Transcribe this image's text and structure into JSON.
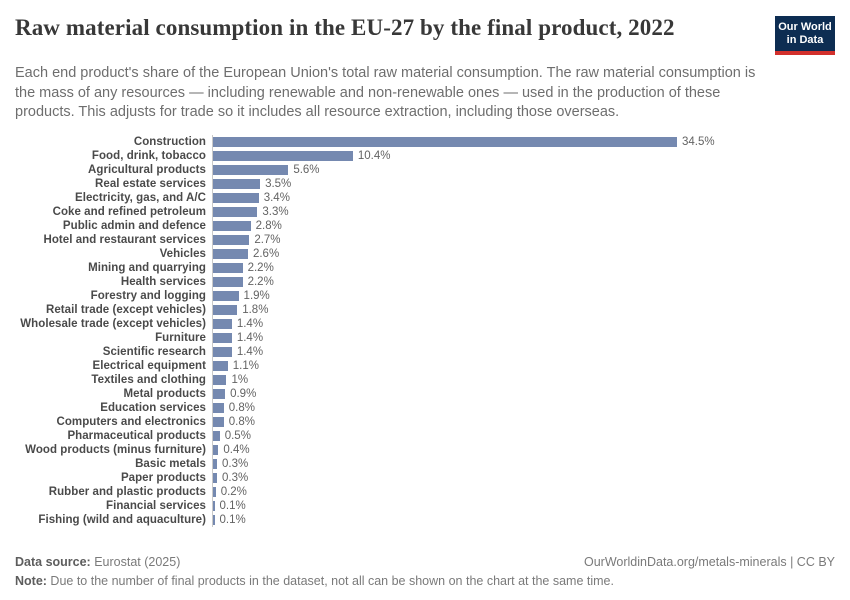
{
  "header": {
    "title": "Raw material consumption in the EU-27 by the final product, 2022",
    "subtitle": "Each end product's share of the European Union's total raw material consumption. The raw material consumption is the mass of any resources — including renewable and non-renewable ones — used in the production of these products. This adjusts for trade so it includes all resource extraction, including those overseas."
  },
  "logo": {
    "line1": "Our World",
    "line2": "in Data",
    "bg_color": "#0d2d52",
    "stripe_color": "#d2302c"
  },
  "chart_data": {
    "type": "bar",
    "orientation": "horizontal",
    "title": "Raw material consumption in the EU-27 by the final product, 2022",
    "unit": "%",
    "xlim": [
      0,
      34.5
    ],
    "grid": false,
    "bar_color": "#7589b0",
    "categories": [
      "Construction",
      "Food, drink, tobacco",
      "Agricultural products",
      "Real estate services",
      "Electricity, gas, and A/C",
      "Coke and refined petroleum",
      "Public admin and defence",
      "Hotel and restaurant services",
      "Vehicles",
      "Mining and quarrying",
      "Health services",
      "Forestry and logging",
      "Retail trade (except vehicles)",
      "Wholesale trade (except vehicles)",
      "Furniture",
      "Scientific research",
      "Electrical equipment",
      "Textiles and clothing",
      "Metal products",
      "Education services",
      "Computers and electronics",
      "Pharmaceutical products",
      "Wood products (minus furniture)",
      "Basic metals",
      "Paper products",
      "Rubber and plastic products",
      "Financial services",
      "Fishing (wild and aquaculture)"
    ],
    "values": [
      34.5,
      10.4,
      5.6,
      3.5,
      3.4,
      3.3,
      2.8,
      2.7,
      2.6,
      2.2,
      2.2,
      1.9,
      1.8,
      1.4,
      1.4,
      1.4,
      1.1,
      1.0,
      0.9,
      0.8,
      0.8,
      0.5,
      0.4,
      0.3,
      0.3,
      0.2,
      0.1,
      0.1
    ],
    "value_labels": [
      "34.5%",
      "10.4%",
      "5.6%",
      "3.5%",
      "3.4%",
      "3.3%",
      "2.8%",
      "2.7%",
      "2.6%",
      "2.2%",
      "2.2%",
      "1.9%",
      "1.8%",
      "1.4%",
      "1.4%",
      "1.4%",
      "1.1%",
      "1%",
      "0.9%",
      "0.8%",
      "0.8%",
      "0.5%",
      "0.4%",
      "0.3%",
      "0.3%",
      "0.2%",
      "0.1%",
      "0.1%"
    ]
  },
  "footer": {
    "source_label": "Data source:",
    "source_value": " Eurostat (2025)",
    "attribution": "OurWorldinData.org/metals-minerals | CC BY",
    "note_label": "Note:",
    "note_value": " Due to the number of final products in the dataset, not all can be shown on the chart at the same time."
  }
}
